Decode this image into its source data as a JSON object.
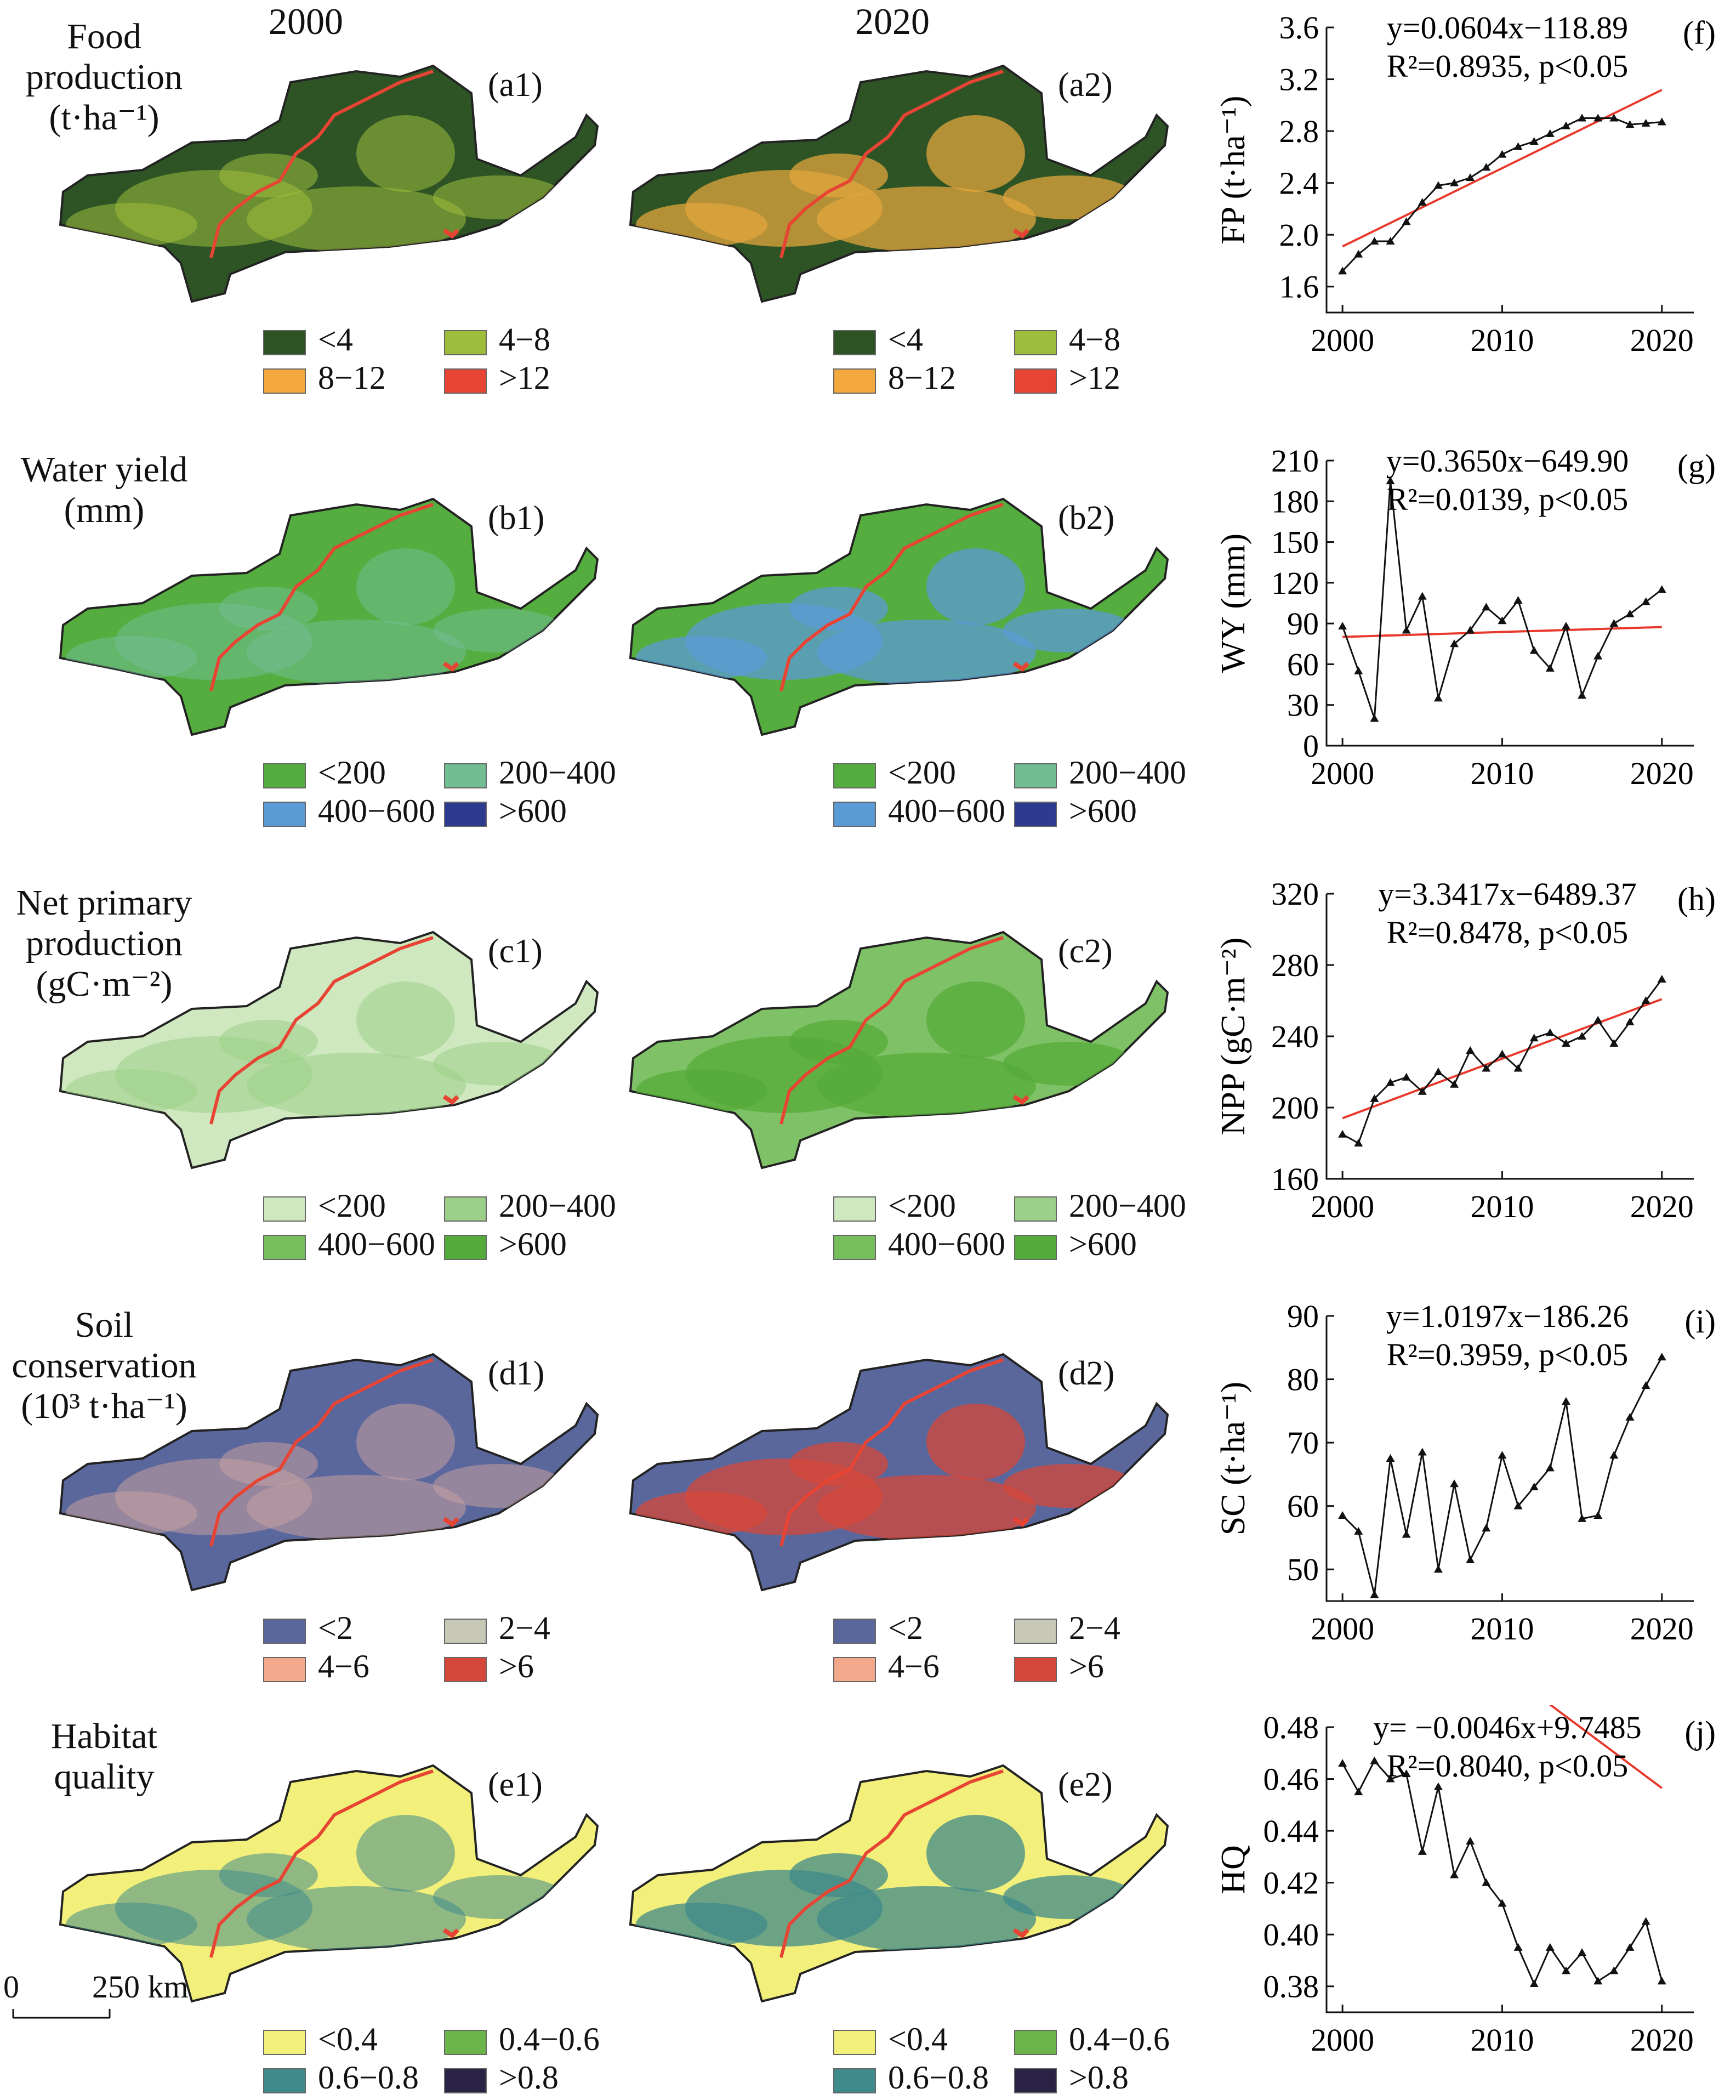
{
  "years": {
    "left": "2000",
    "right": "2020"
  },
  "rows": [
    {
      "id": "fp",
      "title_lines": [
        "Food",
        "production",
        "(t·ha⁻¹)"
      ],
      "panel_left": "(a1)",
      "panel_right": "(a2)",
      "legend": [
        "<4",
        "4−8",
        "8−12",
        ">12"
      ],
      "colors": [
        "#2e5426",
        "#9fbd3c",
        "#f2a83d",
        "#e84434"
      ],
      "base_left": "#2e5426",
      "base_right": "#2e5426",
      "mottle_left": "#9fbd3c",
      "mottle_right": "#e1a53e"
    },
    {
      "id": "wy",
      "title_lines": [
        "Water yield",
        "(mm)"
      ],
      "panel_left": "(b1)",
      "panel_right": "(b2)",
      "legend": [
        "<200",
        "200−400",
        "400−600",
        ">600"
      ],
      "colors": [
        "#54ad3e",
        "#73bd93",
        "#5b9bd5",
        "#2c3b8f"
      ],
      "base_left": "#54ad3e",
      "base_right": "#54ad3e",
      "mottle_left": "#73bd93",
      "mottle_right": "#5b9bd5"
    },
    {
      "id": "npp",
      "title_lines": [
        "Net primary",
        "production",
        "(gC·m⁻²)"
      ],
      "panel_left": "(c1)",
      "panel_right": "(c2)",
      "legend": [
        "<200",
        "200−400",
        "400−600",
        ">600"
      ],
      "colors": [
        "#cfe8bf",
        "#9ccf88",
        "#76be5c",
        "#55ab3a"
      ],
      "base_left": "#cfe8bf",
      "base_right": "#7fc166",
      "mottle_left": "#9ccf88",
      "mottle_right": "#55ab3a"
    },
    {
      "id": "sc",
      "title_lines": [
        "Soil conservation",
        "(10³ t·ha⁻¹)"
      ],
      "panel_left": "(d1)",
      "panel_right": "(d2)",
      "legend": [
        "<2",
        "2−4",
        "4−6",
        ">6"
      ],
      "colors": [
        "#5a679c",
        "#c7c8b6",
        "#f2a88a",
        "#d5473a"
      ],
      "base_left": "#5a679c",
      "base_right": "#5a679c",
      "mottle_left": "#c7a0a0",
      "mottle_right": "#d5473a"
    },
    {
      "id": "hq",
      "title_lines": [
        "Habitat",
        "quality"
      ],
      "panel_left": "(e1)",
      "panel_right": "(e2)",
      "legend": [
        "<0.4",
        "0.4−0.6",
        "0.6−0.8",
        ">0.8"
      ],
      "colors": [
        "#f2f07a",
        "#6bb54a",
        "#3f8a8a",
        "#2b2346"
      ],
      "base_left": "#f2f07a",
      "base_right": "#f2f07a",
      "mottle_left": "#3f8a8a",
      "mottle_right": "#3f8a8a"
    }
  ],
  "scale_bar": {
    "zero": "0",
    "label": "250 km"
  },
  "chart_data": [
    {
      "type": "line",
      "panel": "(f)",
      "ylabel": "FP (t·ha⁻¹)",
      "eq_line1": "y=0.0604x−118.89",
      "eq_line2": "R²=0.8935, p<0.05",
      "ylim": [
        1.4,
        3.6
      ],
      "yticks": [
        "1.6",
        "2.0",
        "2.4",
        "2.8",
        "3.2",
        "3.6"
      ],
      "xlim": [
        1999,
        2022
      ],
      "xticks": [
        "2000",
        "2010",
        "2020"
      ],
      "series": [
        {
          "x": [
            2000,
            2001,
            2002,
            2003,
            2004,
            2005,
            2006,
            2007,
            2008,
            2009,
            2010,
            2011,
            2012,
            2013,
            2014,
            2015,
            2016,
            2017,
            2018,
            2019,
            2020
          ],
          "y": [
            1.72,
            1.85,
            1.95,
            1.95,
            2.1,
            2.25,
            2.38,
            2.4,
            2.44,
            2.52,
            2.62,
            2.68,
            2.72,
            2.78,
            2.84,
            2.9,
            2.9,
            2.9,
            2.85,
            2.86,
            2.87
          ]
        }
      ],
      "trend": {
        "slope": 0.0604,
        "intercept": -118.89
      }
    },
    {
      "type": "line",
      "panel": "(g)",
      "ylabel": "WY (mm)",
      "eq_line1": "y=0.3650x−649.90",
      "eq_line2": "R²=0.0139, p<0.05",
      "ylim": [
        0,
        210
      ],
      "yticks": [
        "0",
        "30",
        "60",
        "90",
        "120",
        "150",
        "180",
        "210"
      ],
      "xlim": [
        1999,
        2022
      ],
      "xticks": [
        "2000",
        "2010",
        "2020"
      ],
      "series": [
        {
          "x": [
            2000,
            2001,
            2002,
            2003,
            2004,
            2005,
            2006,
            2007,
            2008,
            2009,
            2010,
            2011,
            2012,
            2013,
            2014,
            2015,
            2016,
            2017,
            2018,
            2019,
            2020
          ],
          "y": [
            88,
            55,
            20,
            195,
            85,
            110,
            35,
            75,
            85,
            102,
            92,
            107,
            70,
            57,
            88,
            37,
            66,
            90,
            97,
            106,
            115
          ]
        }
      ],
      "trend": {
        "slope": 0.365,
        "intercept": -649.9
      }
    },
    {
      "type": "line",
      "panel": "(h)",
      "ylabel": "NPP (gC·m⁻²)",
      "eq_line1": "y=3.3417x−6489.37",
      "eq_line2": "R²=0.8478, p<0.05",
      "ylim": [
        160,
        320
      ],
      "yticks": [
        "160",
        "200",
        "240",
        "280",
        "320"
      ],
      "xlim": [
        1999,
        2022
      ],
      "xticks": [
        "2000",
        "2010",
        "2020"
      ],
      "series": [
        {
          "x": [
            2000,
            2001,
            2002,
            2003,
            2004,
            2005,
            2006,
            2007,
            2008,
            2009,
            2010,
            2011,
            2012,
            2013,
            2014,
            2015,
            2016,
            2017,
            2018,
            2019,
            2020
          ],
          "y": [
            185,
            180,
            205,
            214,
            217,
            209,
            220,
            213,
            232,
            222,
            230,
            222,
            239,
            242,
            236,
            240,
            249,
            236,
            248,
            260,
            272
          ]
        }
      ],
      "trend": {
        "slope": 3.3417,
        "intercept": -6489.37
      }
    },
    {
      "type": "line",
      "panel": "(i)",
      "ylabel": "SC (t·ha⁻¹)",
      "eq_line1": "y=1.0197x−186.26",
      "eq_line2": "R²=0.3959, p<0.05",
      "ylim": [
        45,
        90
      ],
      "yticks": [
        "50",
        "60",
        "70",
        "80",
        "90"
      ],
      "xlim": [
        1999,
        2022
      ],
      "xticks": [
        "2000",
        "2010",
        "2020"
      ],
      "series": [
        {
          "x": [
            2000,
            2001,
            2002,
            2003,
            2004,
            2005,
            2006,
            2007,
            2008,
            2009,
            2010,
            2011,
            2012,
            2013,
            2014,
            2015,
            2016,
            2017,
            2018,
            2019,
            2020
          ],
          "y": [
            58.5,
            56,
            46,
            67.5,
            55.5,
            68.5,
            50,
            63.5,
            51.5,
            56.5,
            68,
            60,
            63,
            66,
            76.5,
            58,
            58.5,
            68,
            74,
            79,
            83.5
          ]
        }
      ],
      "trend": {
        "slope": 1.0197,
        "intercept": -186.26
      }
    },
    {
      "type": "line",
      "panel": "(j)",
      "ylabel": "HQ",
      "eq_line1": "y= −0.0046x+9.7485",
      "eq_line2": "R²=0.8040, p<0.05",
      "ylim": [
        0.37,
        0.48
      ],
      "yticks": [
        "0.38",
        "0.40",
        "0.42",
        "0.44",
        "0.46",
        "0.48"
      ],
      "xlim": [
        1999,
        2022
      ],
      "xticks": [
        "2000",
        "2010",
        "2020"
      ],
      "series": [
        {
          "x": [
            2000,
            2001,
            2002,
            2003,
            2004,
            2005,
            2006,
            2007,
            2008,
            2009,
            2010,
            2011,
            2012,
            2013,
            2014,
            2015,
            2016,
            2017,
            2018,
            2019,
            2020
          ],
          "y": [
            0.466,
            0.455,
            0.467,
            0.46,
            0.462,
            0.432,
            0.457,
            0.423,
            0.436,
            0.42,
            0.412,
            0.395,
            0.381,
            0.395,
            0.386,
            0.393,
            0.382,
            0.386,
            0.395,
            0.405,
            0.382
          ]
        }
      ],
      "trend": {
        "slope": -0.0046,
        "intercept": 9.7485
      }
    }
  ]
}
